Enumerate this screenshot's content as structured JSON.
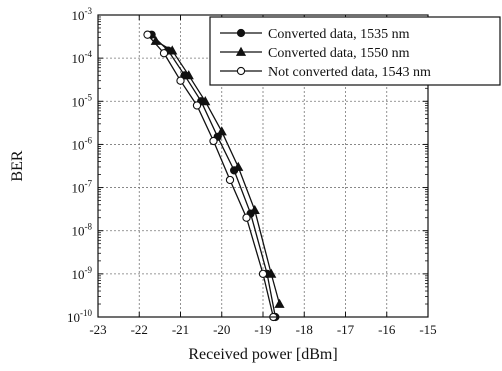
{
  "chart_data": {
    "type": "line",
    "xlabel": "Received power [dBm]",
    "ylabel": "BER",
    "xlim": [
      -23,
      -15
    ],
    "ylim_exponent": [
      -10,
      -3
    ],
    "y_scale": "log",
    "grid": true,
    "legend_position": "top-right",
    "x_ticks": [
      "-23",
      "-22",
      "-21",
      "-20",
      "-19",
      "-18",
      "-17",
      "-16",
      "-15"
    ],
    "y_ticks": [
      {
        "base": "10",
        "exp": "-3",
        "value": -3
      },
      {
        "base": "10",
        "exp": "-4",
        "value": -4
      },
      {
        "base": "10",
        "exp": "-5",
        "value": -5
      },
      {
        "base": "10",
        "exp": "-6",
        "value": -6
      },
      {
        "base": "10",
        "exp": "-7",
        "value": -7
      },
      {
        "base": "10",
        "exp": "-8",
        "value": -8
      },
      {
        "base": "10",
        "exp": "-9",
        "value": -9
      },
      {
        "base": "10",
        "exp": "-10",
        "value": -10
      }
    ],
    "series": [
      {
        "name": "Converted data, 1535 nm",
        "marker": "circle-filled",
        "points": [
          {
            "x": -21.7,
            "y": 0.00035
          },
          {
            "x": -21.3,
            "y": 0.00015
          },
          {
            "x": -20.9,
            "y": 4e-05
          },
          {
            "x": -20.5,
            "y": 1e-05
          },
          {
            "x": -20.1,
            "y": 1.5e-06
          },
          {
            "x": -19.7,
            "y": 2.5e-07
          },
          {
            "x": -19.3,
            "y": 2.5e-08
          },
          {
            "x": -18.9,
            "y": 1e-09
          },
          {
            "x": -18.7,
            "y": 1e-10
          }
        ]
      },
      {
        "name": "Converted data, 1550 nm",
        "marker": "triangle-filled",
        "points": [
          {
            "x": -21.6,
            "y": 0.00025
          },
          {
            "x": -21.2,
            "y": 0.00015
          },
          {
            "x": -20.8,
            "y": 4e-05
          },
          {
            "x": -20.4,
            "y": 1e-05
          },
          {
            "x": -20.0,
            "y": 2e-06
          },
          {
            "x": -19.6,
            "y": 3e-07
          },
          {
            "x": -19.2,
            "y": 3e-08
          },
          {
            "x": -18.8,
            "y": 1e-09
          },
          {
            "x": -18.6,
            "y": 2e-10
          }
        ]
      },
      {
        "name": "Not converted data, 1543 nm",
        "marker": "circle-open",
        "points": [
          {
            "x": -21.8,
            "y": 0.00035
          },
          {
            "x": -21.4,
            "y": 0.00013
          },
          {
            "x": -21.0,
            "y": 3e-05
          },
          {
            "x": -20.6,
            "y": 8e-06
          },
          {
            "x": -20.2,
            "y": 1.2e-06
          },
          {
            "x": -19.8,
            "y": 1.5e-07
          },
          {
            "x": -19.4,
            "y": 2e-08
          },
          {
            "x": -19.0,
            "y": 1e-09
          },
          {
            "x": -18.75,
            "y": 1e-10
          }
        ]
      }
    ]
  }
}
